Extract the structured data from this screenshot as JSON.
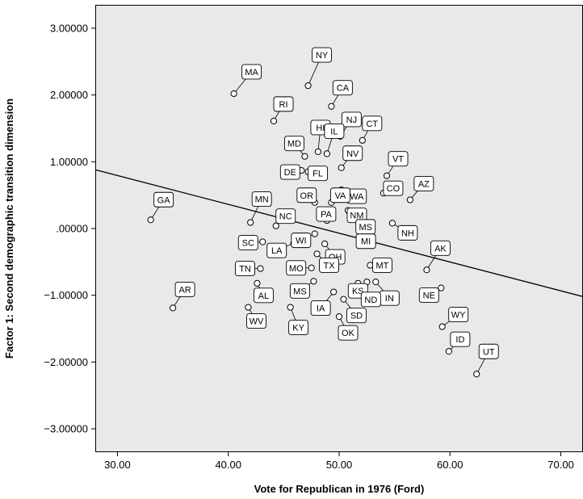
{
  "chart_data": {
    "type": "scatter",
    "title": "",
    "xlabel": "Vote for Republican in 1976 (Ford)",
    "ylabel": "Factor 1: Second demographic transition dimension",
    "xlim": [
      28,
      72
    ],
    "ylim": [
      -3.35,
      3.35
    ],
    "x_ticks": [
      {
        "value": 30,
        "label": "30.00"
      },
      {
        "value": 40,
        "label": "40.00"
      },
      {
        "value": 50,
        "label": "50.00"
      },
      {
        "value": 60,
        "label": "60.00"
      },
      {
        "value": 70,
        "label": "70.00"
      }
    ],
    "y_ticks": [
      {
        "value": 3,
        "label": "3.00000"
      },
      {
        "value": 2,
        "label": "2.00000"
      },
      {
        "value": 1,
        "label": "1.00000"
      },
      {
        "value": 0,
        "label": ".00000"
      },
      {
        "value": -1,
        "label": "−1.00000"
      },
      {
        "value": -2,
        "label": "−2.00000"
      },
      {
        "value": -3,
        "label": "−3.00000"
      }
    ],
    "plot_background": "#e9e9e9",
    "grid": false,
    "legend": "none",
    "fit_line": {
      "x": [
        28,
        72
      ],
      "y": [
        0.88,
        -1.02
      ]
    },
    "points": [
      {
        "label": "MA",
        "x": 40.5,
        "y": 2.02
      },
      {
        "label": "NY",
        "x": 47.2,
        "y": 2.14
      },
      {
        "label": "CA",
        "x": 49.3,
        "y": 1.83
      },
      {
        "label": "RI",
        "x": 44.1,
        "y": 1.61
      },
      {
        "label": "CT",
        "x": 52.1,
        "y": 1.32
      },
      {
        "label": "NJ",
        "x": 50.1,
        "y": 1.38
      },
      {
        "label": "HI",
        "x": 48.1,
        "y": 1.15
      },
      {
        "label": "IL",
        "x": 48.9,
        "y": 1.12
      },
      {
        "label": "MD",
        "x": 46.9,
        "y": 1.08
      },
      {
        "label": "NV",
        "x": 50.2,
        "y": 0.91
      },
      {
        "label": "VT",
        "x": 54.3,
        "y": 0.79
      },
      {
        "label": "DE",
        "x": 46.6,
        "y": 0.87
      },
      {
        "label": "FL",
        "x": 47.2,
        "y": 0.85
      },
      {
        "label": "AZ",
        "x": 56.4,
        "y": 0.43
      },
      {
        "label": "WA",
        "x": 50.2,
        "y": 0.58
      },
      {
        "label": "VA",
        "x": 49.3,
        "y": 0.39
      },
      {
        "label": "OR",
        "x": 47.8,
        "y": 0.39
      },
      {
        "label": "CO",
        "x": 54.0,
        "y": 0.53
      },
      {
        "label": "GA",
        "x": 33.0,
        "y": 0.13
      },
      {
        "label": "MN",
        "x": 42.0,
        "y": 0.09
      },
      {
        "label": "NC",
        "x": 44.3,
        "y": 0.04
      },
      {
        "label": "NM",
        "x": 50.8,
        "y": 0.27
      },
      {
        "label": "PA",
        "x": 48.9,
        "y": 0.12
      },
      {
        "label": "NH",
        "x": 54.8,
        "y": 0.08
      },
      {
        "label": "WI",
        "x": 47.8,
        "y": -0.08
      },
      {
        "label": "MS",
        "x": 51.8,
        "y": 0.05
      },
      {
        "label": "MI",
        "x": 51.9,
        "y": -0.13
      },
      {
        "label": "SC",
        "x": 43.1,
        "y": -0.2
      },
      {
        "label": "LA",
        "x": 45.9,
        "y": -0.22
      },
      {
        "label": "OH",
        "x": 48.7,
        "y": -0.23
      },
      {
        "label": "AK",
        "x": 57.9,
        "y": -0.62
      },
      {
        "label": "MO",
        "x": 47.5,
        "y": -0.59
      },
      {
        "label": "TN",
        "x": 42.9,
        "y": -0.6
      },
      {
        "label": "TX",
        "x": 48.0,
        "y": -0.38
      },
      {
        "label": "KS",
        "x": 52.5,
        "y": -0.8
      },
      {
        "label": "MT",
        "x": 52.8,
        "y": -0.55
      },
      {
        "label": "AL",
        "x": 42.6,
        "y": -0.82
      },
      {
        "label": "MS",
        "x": 47.7,
        "y": -0.79
      },
      {
        "label": "IN",
        "x": 53.3,
        "y": -0.8
      },
      {
        "label": "NE",
        "x": 59.2,
        "y": -0.89
      },
      {
        "label": "IA",
        "x": 49.5,
        "y": -0.95
      },
      {
        "label": "AR",
        "x": 35.0,
        "y": -1.19
      },
      {
        "label": "SD",
        "x": 50.4,
        "y": -1.06
      },
      {
        "label": "ND",
        "x": 51.7,
        "y": -0.82
      },
      {
        "label": "WV",
        "x": 41.8,
        "y": -1.18
      },
      {
        "label": "KY",
        "x": 45.6,
        "y": -1.18
      },
      {
        "label": "OK",
        "x": 50.0,
        "y": -1.32
      },
      {
        "label": "WY",
        "x": 59.3,
        "y": -1.47
      },
      {
        "label": "ID",
        "x": 59.9,
        "y": -1.84
      },
      {
        "label": "UT",
        "x": 62.4,
        "y": -2.18
      }
    ]
  }
}
